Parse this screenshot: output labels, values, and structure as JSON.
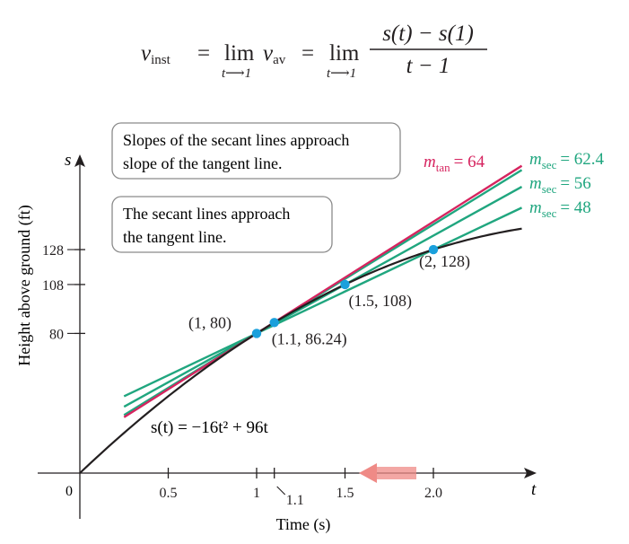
{
  "formula": {
    "v": "v",
    "inst_sub": "inst",
    "eq1": "=",
    "lim1": "lim",
    "lim1_sub": "t⟶1",
    "vav_v": "v",
    "vav_sub": "av",
    "eq2": "=",
    "lim2": "lim",
    "lim2_sub": "t⟶1",
    "numerator": "s(t) − s(1)",
    "denominator": "t − 1"
  },
  "chart_data": {
    "type": "line",
    "title": "",
    "xlabel": "Time (s)",
    "ylabel": "Height above ground (ft)",
    "x_axis_letter": "t",
    "y_axis_letter": "s",
    "origin_label": "0",
    "xlim": [
      0,
      2.55
    ],
    "ylim": [
      0,
      175
    ],
    "x_ticks": [
      {
        "value": 0.5,
        "label": "0.5"
      },
      {
        "value": 1,
        "label": "1"
      },
      {
        "value": 1.1,
        "label": "1.1"
      },
      {
        "value": 1.5,
        "label": "1.5"
      },
      {
        "value": 2,
        "label": "2.0"
      }
    ],
    "y_ticks": [
      {
        "value": 80,
        "label": "80"
      },
      {
        "value": 108,
        "label": "108"
      },
      {
        "value": 128,
        "label": "128"
      }
    ],
    "curve": {
      "label": "s(t) = −16t² + 96t",
      "a": -16,
      "b": 96,
      "t_range": [
        0,
        2.5
      ],
      "color": "#231f20"
    },
    "tangent": {
      "label_m": "m",
      "label_sub": "tan",
      "label_value": "= 64",
      "slope": 64,
      "point": [
        1,
        80
      ],
      "t_range": [
        0.25,
        2.5
      ],
      "color": "#d6245f"
    },
    "secants": [
      {
        "label_m": "m",
        "label_sub": "sec",
        "label_value": "= 62.4",
        "slope": 62.4,
        "t_range": [
          0.25,
          2.5
        ]
      },
      {
        "label_m": "m",
        "label_sub": "sec",
        "label_value": "= 56",
        "slope": 56,
        "t_range": [
          0.25,
          2.5
        ]
      },
      {
        "label_m": "m",
        "label_sub": "sec",
        "label_value": "= 48",
        "slope": 48,
        "t_range": [
          0.25,
          2.5
        ]
      }
    ],
    "secant_color": "#20a67f",
    "points": [
      {
        "x": 1,
        "y": 80,
        "label": "(1, 80)"
      },
      {
        "x": 1.1,
        "y": 86.24,
        "label": "(1.1, 86.24)"
      },
      {
        "x": 1.5,
        "y": 108,
        "label": "(1.5, 108)"
      },
      {
        "x": 2,
        "y": 128,
        "label": "(2, 128)"
      }
    ],
    "point_color": "#1aa0dc",
    "annotations": [
      {
        "lines": [
          "Slopes of the secant lines approach",
          "slope of the tangent line."
        ]
      },
      {
        "lines": [
          "The secant lines approach",
          "the tangent line."
        ]
      }
    ],
    "arrow_color": "#ef8a86",
    "arrow_direction": "left"
  }
}
